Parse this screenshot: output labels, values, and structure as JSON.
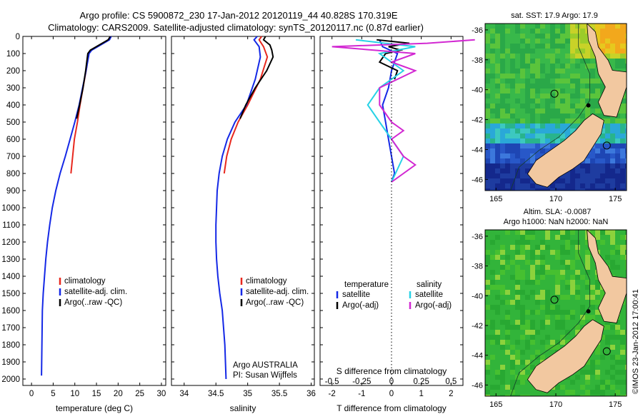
{
  "titles": {
    "line1": "Argo profile: CS 5900872_230 17-Jan-2012 20120119_44 40.828S 170.319E",
    "line2": "Climatology: CARS2009. Satellite-adjusted climatology: synTS_20120117.nc (0.87d earlier)"
  },
  "chart_data": [
    {
      "type": "line",
      "name": "temperature",
      "xlabel": "temperature (deg C)",
      "ylabel": "",
      "xlim": [
        -2,
        31
      ],
      "ylim": [
        2050,
        0
      ],
      "xticks": [
        0,
        5,
        10,
        15,
        20,
        25,
        30
      ],
      "yticks": [
        0,
        100,
        200,
        300,
        400,
        500,
        600,
        700,
        800,
        900,
        1000,
        1100,
        1200,
        1300,
        1400,
        1500,
        1600,
        1700,
        1800,
        1900,
        2000
      ],
      "legend": [
        "climatology",
        "satellite-adj. clim.",
        "Argo(..raw -QC)"
      ],
      "colors": {
        "climatology": "#e8281e",
        "satellite": "#1428e6",
        "argo": "#000000"
      },
      "series": [
        {
          "name": "climatology",
          "x": [
            18.2,
            17.8,
            13.8,
            13.2,
            12.6,
            11.9,
            11.2,
            10.6,
            9.9,
            9.1
          ],
          "y": [
            0,
            20,
            80,
            100,
            200,
            300,
            400,
            500,
            600,
            800
          ]
        },
        {
          "name": "satellite-adj. clim.",
          "x": [
            18.4,
            18.0,
            13.9,
            13.3,
            12.6,
            11.8,
            11.0,
            10.0,
            8.9,
            7.8,
            6.6,
            5.6,
            4.8,
            4.2,
            3.7,
            3.3,
            3.0,
            2.7,
            2.5,
            2.3
          ],
          "y": [
            0,
            20,
            80,
            100,
            200,
            300,
            400,
            500,
            600,
            700,
            800,
            900,
            1000,
            1100,
            1200,
            1300,
            1400,
            1500,
            1600,
            1980
          ]
        },
        {
          "name": "Argo(..raw -QC)",
          "x": [
            18.2,
            17.7,
            13.6,
            13.0,
            12.5,
            11.9,
            11.1,
            10.4
          ],
          "y": [
            0,
            20,
            80,
            100,
            200,
            300,
            400,
            480
          ]
        }
      ]
    },
    {
      "type": "line",
      "name": "salinity",
      "xlabel": "salinity",
      "xlim": [
        33.8,
        36.05
      ],
      "ylim": [
        2050,
        0
      ],
      "xticks": [
        34,
        34.5,
        35,
        35.5,
        36
      ],
      "xticklabels": [
        "34",
        "34.5",
        "35",
        "35.5",
        "36"
      ],
      "legend": [
        "climatology",
        "satellite-adj. clim.",
        "Argo(..raw -QC)"
      ],
      "annotation": [
        "Argo AUSTRALIA",
        "PI: Susan Wijffels"
      ],
      "series": [
        {
          "name": "climatology",
          "x": [
            35.22,
            35.18,
            35.25,
            35.31,
            35.2,
            35.0,
            34.85,
            34.74,
            34.67,
            34.63
          ],
          "y": [
            0,
            20,
            60,
            120,
            250,
            400,
            500,
            600,
            700,
            800
          ]
        },
        {
          "name": "satellite-adj. clim.",
          "x": [
            35.15,
            35.1,
            35.18,
            35.2,
            35.12,
            34.98,
            34.8,
            34.68,
            34.6,
            34.55,
            34.52,
            34.51,
            34.5,
            34.5,
            34.51,
            34.53,
            34.56,
            34.6,
            34.64,
            34.66
          ],
          "y": [
            0,
            20,
            60,
            120,
            250,
            400,
            500,
            600,
            700,
            800,
            900,
            1000,
            1100,
            1200,
            1300,
            1400,
            1500,
            1600,
            1800,
            2000
          ]
        },
        {
          "name": "Argo(..raw -QC)",
          "x": [
            35.28,
            35.25,
            35.35,
            35.38,
            35.4,
            35.3,
            35.12,
            34.97,
            34.88
          ],
          "y": [
            0,
            20,
            50,
            80,
            120,
            200,
            300,
            400,
            480
          ]
        }
      ]
    },
    {
      "type": "line",
      "name": "differences",
      "xlabel": "T difference from climatology",
      "xlabel_top": "S difference from climatology",
      "xlim": [
        -2.4,
        2.4
      ],
      "ylim": [
        2050,
        0
      ],
      "xticks": [
        -2,
        -1,
        0,
        1,
        2
      ],
      "s_xticks": [
        -0.5,
        -0.25,
        0,
        0.25,
        0.5
      ],
      "s_xticklabels": [
        "-0.5",
        "-0.25",
        "0",
        "0.25",
        "0.5"
      ],
      "legend_left": {
        "title": "temperature",
        "items": [
          "satellite",
          "Argo(-adj)"
        ]
      },
      "legend_right": {
        "title": "salinity",
        "items": [
          "satellite",
          "Argo(-adj)"
        ]
      },
      "colors": {
        "t_sat": "#1428e6",
        "t_argo": "#000000",
        "s_sat": "#28d2e6",
        "s_argo": "#d228d2"
      },
      "series": [
        {
          "name": "temperature satellite",
          "x": [
            -0.4,
            -0.3,
            0.2,
            0.0,
            -0.1,
            -0.3,
            -0.2,
            -0.1,
            0.0,
            0.1,
            0.0
          ],
          "y": [
            20,
            60,
            100,
            200,
            300,
            400,
            500,
            600,
            700,
            800,
            850
          ]
        },
        {
          "name": "temperature Argo(-adj)",
          "x": [
            -0.5,
            0.6,
            -0.1,
            0.3,
            -0.2,
            -0.4,
            0.2,
            0.1
          ],
          "y": [
            20,
            40,
            60,
            80,
            100,
            150,
            200,
            250
          ]
        },
        {
          "name": "salinity satellite",
          "x": [
            -0.3,
            0.2,
            -0.1,
            0.1,
            -0.1,
            -0.2,
            -0.1,
            0.0,
            0.1,
            0.0
          ],
          "y": [
            20,
            60,
            100,
            200,
            300,
            400,
            500,
            600,
            700,
            850
          ]
        },
        {
          "name": "salinity Argo(-adj)",
          "x": [
            0.7,
            0.3,
            -0.5,
            0.2,
            0.0,
            0.2,
            -0.1,
            -0.1,
            0.0,
            0.1,
            0.0,
            0.1,
            0.2,
            0.0
          ],
          "y": [
            20,
            40,
            60,
            100,
            150,
            200,
            300,
            400,
            500,
            550,
            600,
            700,
            750,
            850
          ]
        }
      ]
    }
  ],
  "maps": {
    "top": {
      "title": "sat. SST: 17.9 Argo: 17.9",
      "xticks": [
        "165",
        "170",
        "175"
      ],
      "yticks": [
        "-36",
        "-38",
        "-40",
        "-42",
        "-44",
        "-46"
      ]
    },
    "bottom": {
      "title_line1": "Altim. SLA: -0.0087",
      "title_line2": "Argo h1000: NaN h2000: NaN",
      "xticks": [
        "165",
        "170",
        "175"
      ],
      "yticks": [
        "-36",
        "-38",
        "-40",
        "-42",
        "-44",
        "-46"
      ]
    }
  },
  "footer": "©IMOS 23-Jan-2012 17:00:41"
}
